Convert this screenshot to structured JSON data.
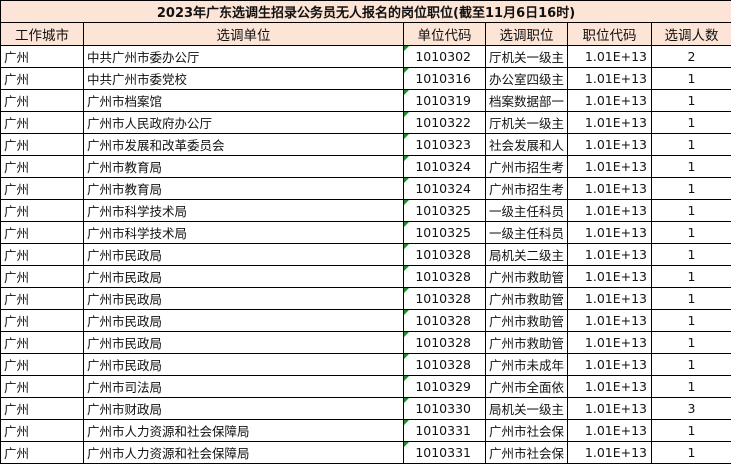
{
  "title": "2023年广东选调生招录公务员无人报名的岗位职位(截至11月6日16时)",
  "columns": [
    "工作城市",
    "选调单位",
    "单位代码",
    "选调职位",
    "职位代码",
    "选调人数"
  ],
  "rows": [
    [
      "广州",
      "中共广州市委办公厅",
      "1010302",
      "厅机关一级主",
      "1.01E+13",
      "2"
    ],
    [
      "广州",
      "中共广州市委党校",
      "1010316",
      "办公室四级主",
      "1.01E+13",
      "1"
    ],
    [
      "广州",
      "广州市档案馆",
      "1010319",
      "档案数据部一",
      "1.01E+13",
      "1"
    ],
    [
      "广州",
      "广州市人民政府办公厅",
      "1010322",
      "厅机关一级主",
      "1.01E+13",
      "1"
    ],
    [
      "广州",
      "广州市发展和改革委员会",
      "1010323",
      "社会发展和人",
      "1.01E+13",
      "1"
    ],
    [
      "广州",
      "广州市教育局",
      "1010324",
      "广州市招生考",
      "1.01E+13",
      "1"
    ],
    [
      "广州",
      "广州市教育局",
      "1010324",
      "广州市招生考",
      "1.01E+13",
      "1"
    ],
    [
      "广州",
      "广州市科学技术局",
      "1010325",
      "一级主任科员",
      "1.01E+13",
      "1"
    ],
    [
      "广州",
      "广州市科学技术局",
      "1010325",
      "一级主任科员",
      "1.01E+13",
      "1"
    ],
    [
      "广州",
      "广州市民政局",
      "1010328",
      "局机关二级主",
      "1.01E+13",
      "1"
    ],
    [
      "广州",
      "广州市民政局",
      "1010328",
      "广州市救助管",
      "1.01E+13",
      "1"
    ],
    [
      "广州",
      "广州市民政局",
      "1010328",
      "广州市救助管",
      "1.01E+13",
      "1"
    ],
    [
      "广州",
      "广州市民政局",
      "1010328",
      "广州市救助管",
      "1.01E+13",
      "1"
    ],
    [
      "广州",
      "广州市民政局",
      "1010328",
      "广州市救助管",
      "1.01E+13",
      "1"
    ],
    [
      "广州",
      "广州市民政局",
      "1010328",
      "广州市未成年",
      "1.01E+13",
      "1"
    ],
    [
      "广州",
      "广州市司法局",
      "1010329",
      "广州市全面依",
      "1.01E+13",
      "1"
    ],
    [
      "广州",
      "广州市财政局",
      "1010330",
      "局机关一级主",
      "1.01E+13",
      "3"
    ],
    [
      "广州",
      "广州市人力资源和社会保障局",
      "1010331",
      "广州市社会保",
      "1.01E+13",
      "1"
    ],
    [
      "广州",
      "广州市人力资源和社会保障局",
      "1010331",
      "广州市社会保",
      "1.01E+13",
      "1"
    ]
  ],
  "colors": {
    "header_bg": "#fce4d6",
    "comment_marker": "#1e8b2e"
  }
}
